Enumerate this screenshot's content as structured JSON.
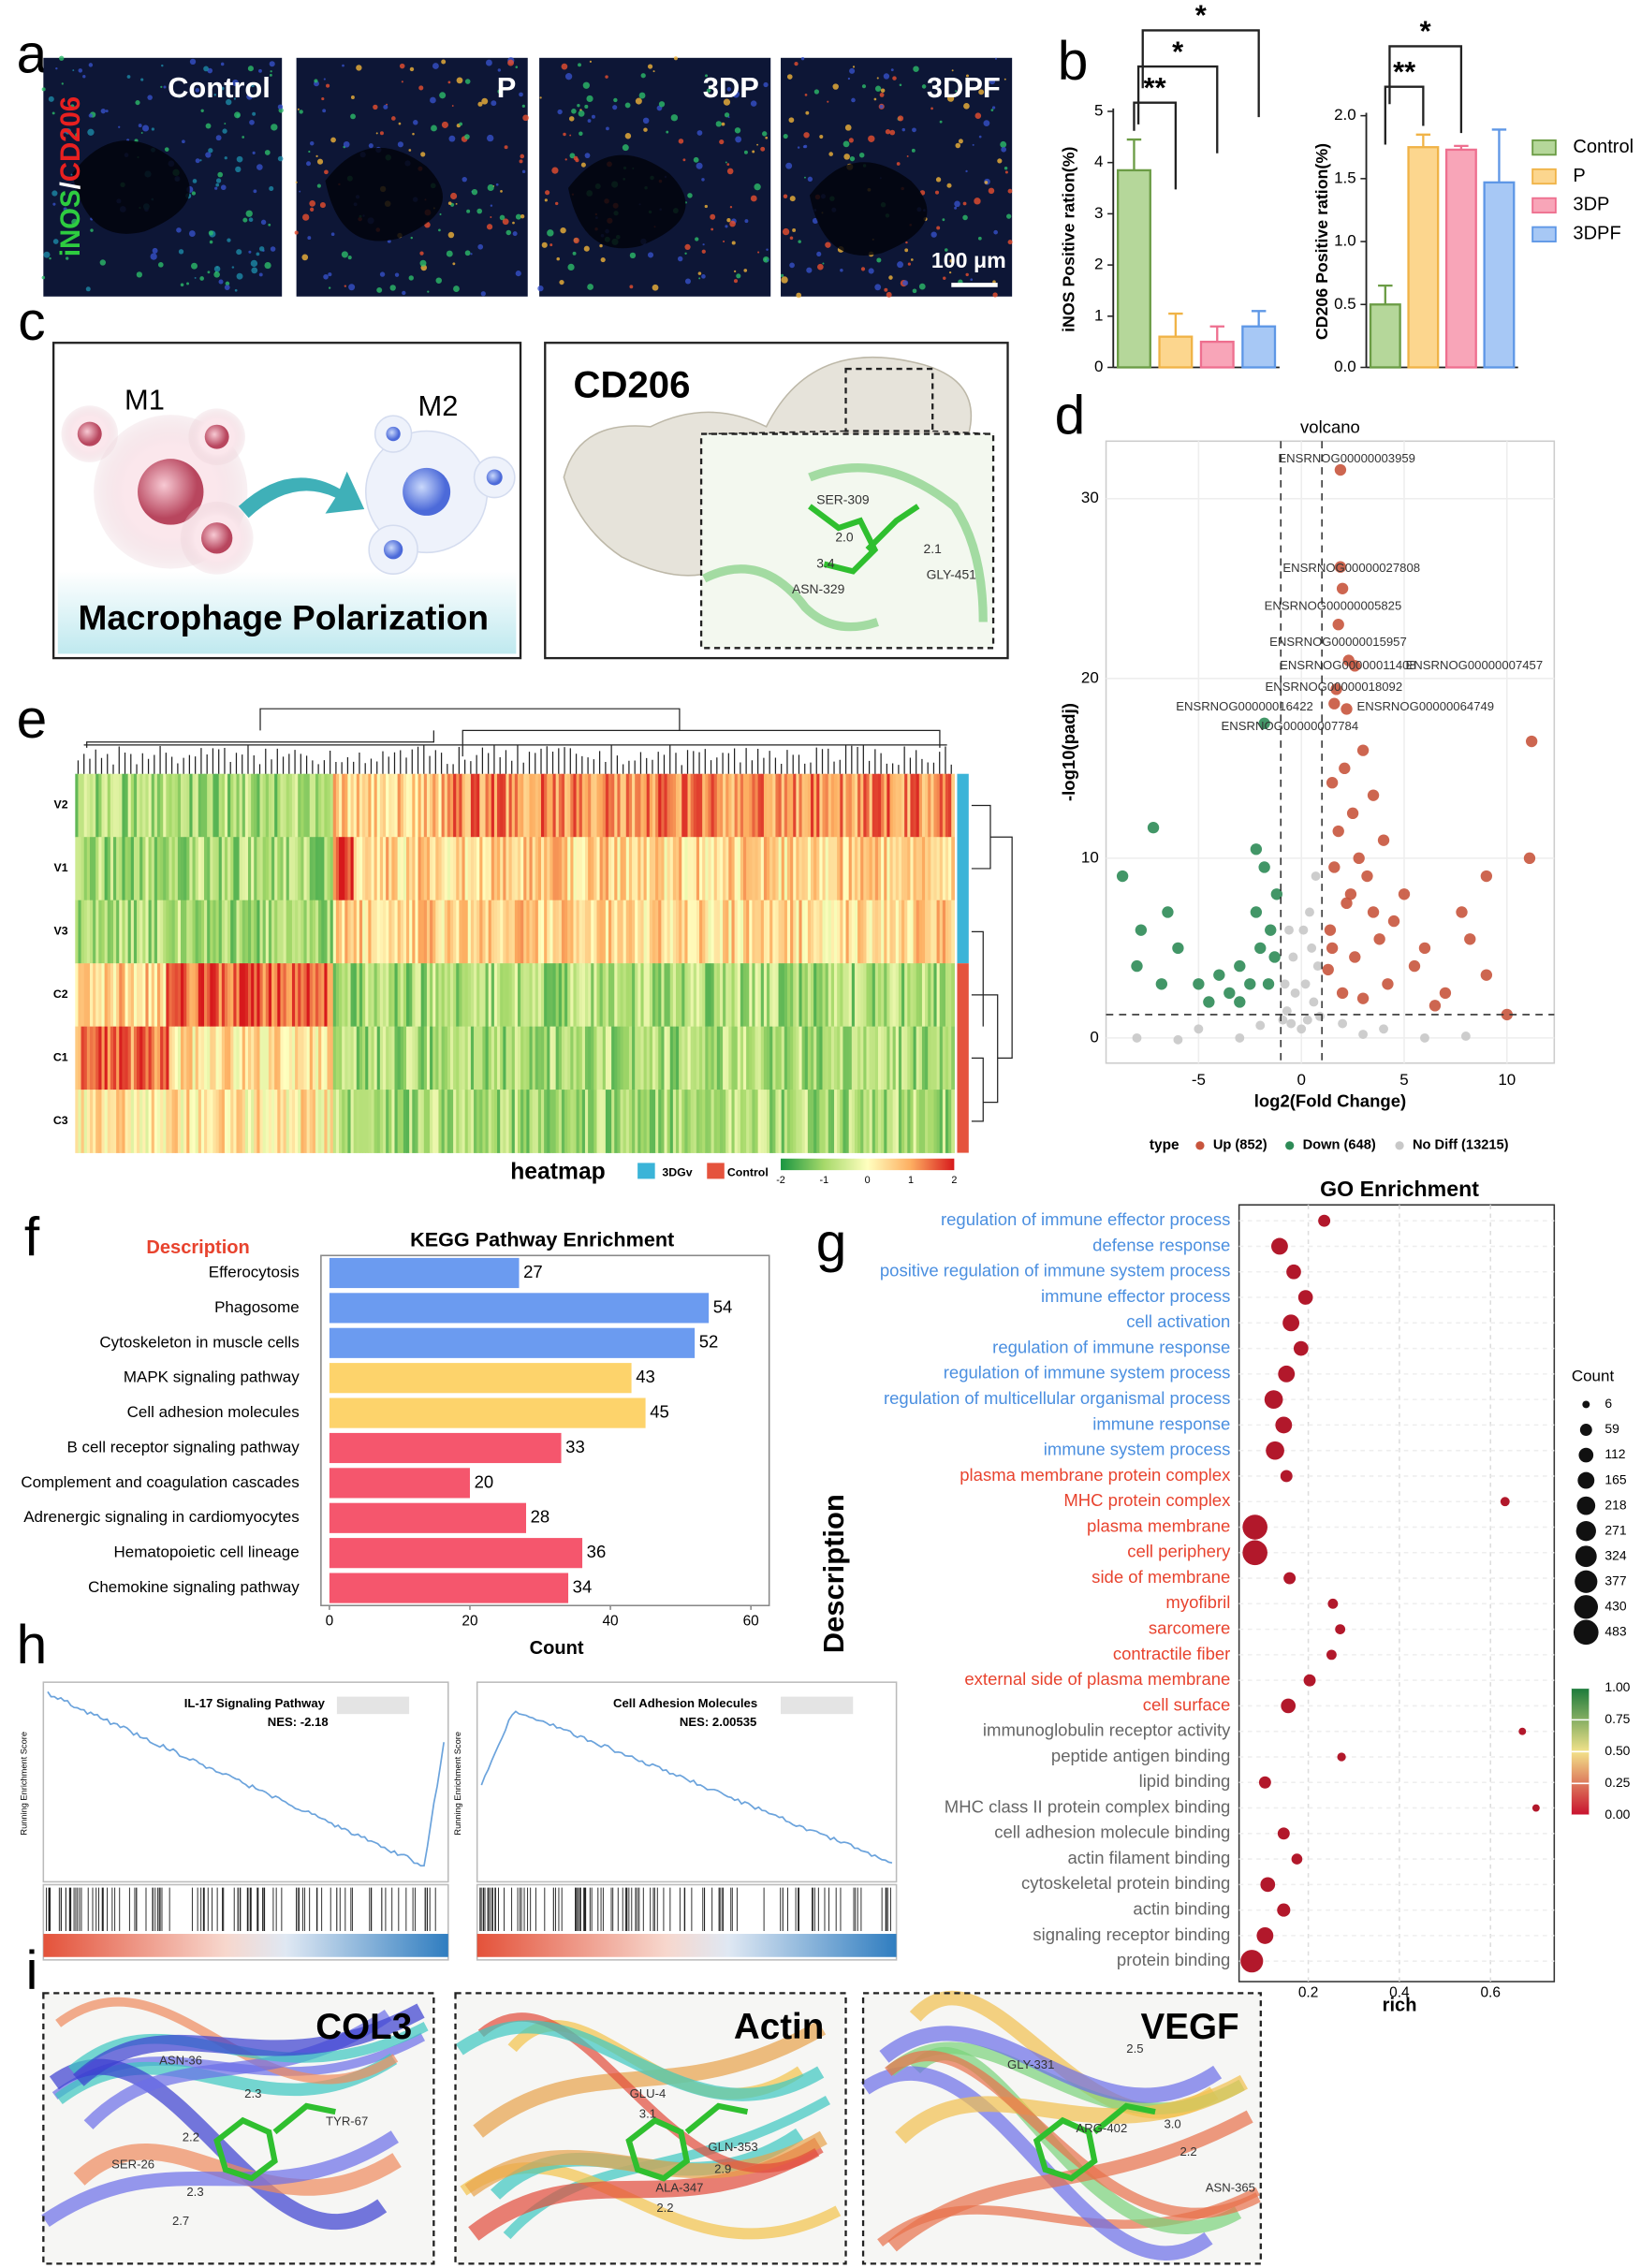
{
  "panel_labels": [
    "a",
    "b",
    "c",
    "d",
    "e",
    "f",
    "g",
    "h",
    "i"
  ],
  "a": {
    "stain_1": "iNOS",
    "stain_sep": "/",
    "stain_2": "CD206",
    "images": [
      "Control",
      "P",
      "3DP",
      "3DPF"
    ],
    "scale_bar": "100 μm"
  },
  "c": {
    "m1": "M1",
    "m2": "M2",
    "caption": "Macrophage Polarization",
    "protein": "CD206",
    "residues": [
      "SER-309",
      "2.0",
      "3.4",
      "ASN-329",
      "2.1",
      "GLY-451"
    ]
  },
  "e": {
    "legend_title": "heatmap",
    "groups": [
      {
        "name": "3DGv",
        "color": "#3bb4d8"
      },
      {
        "name": "Control",
        "color": "#e5533d"
      }
    ],
    "rows": [
      "V2",
      "V1",
      "V3",
      "C2",
      "C1",
      "C3"
    ],
    "colorbar_ticks": [
      -2,
      -1,
      0,
      1,
      2
    ]
  },
  "h": {
    "plots": [
      {
        "title": "IL-17 Signaling Pathway",
        "nes": "NES: -2.18",
        "y_label": "Running Enrichment Score"
      },
      {
        "title": "Cell Adhesion Molecules",
        "nes": "NES: 2.00535",
        "y_label": "Running Enrichment Score"
      }
    ]
  },
  "i": {
    "panels": [
      {
        "name": "COL3",
        "labels": [
          "ASN-36",
          "2.3",
          "TYR-67",
          "2.2",
          "SER-26",
          "2.3",
          "2.7"
        ]
      },
      {
        "name": "Actin",
        "labels": [
          "GLU-4",
          "3.1",
          "GLN-353",
          "2.9",
          "ALA-347",
          "2.2"
        ]
      },
      {
        "name": "VEGF",
        "labels": [
          "GLY-331",
          "2.5",
          "ARG-402",
          "3.0",
          "2.2",
          "ASN-365"
        ]
      }
    ]
  },
  "chart_data": [
    {
      "type": "bar",
      "y_label": "iNOS Positive ration(%)",
      "values": [
        3.85,
        0.6,
        0.5,
        0.8
      ],
      "errors": [
        0.6,
        0.45,
        0.3,
        0.3
      ],
      "colors": [
        "#b5d79a",
        "#fcd68e",
        "#f8a5b8",
        "#a7c8f5"
      ],
      "edge_colors": [
        "#6b9c45",
        "#f0b347",
        "#ee6f8f",
        "#5e97e6"
      ],
      "ylim": [
        0,
        5
      ],
      "yticks": [
        0,
        1,
        2,
        3,
        4,
        5
      ],
      "significance": [
        {
          "from": 0,
          "to": 1,
          "label": "**"
        },
        {
          "from": 0,
          "to": 2,
          "label": "*"
        },
        {
          "from": 0,
          "to": 3,
          "label": "*"
        }
      ]
    },
    {
      "type": "bar",
      "y_label": "CD206 Positive ration(%)",
      "categories": [
        "Control",
        "P",
        "3DP",
        "3DPF"
      ],
      "values": [
        0.5,
        1.75,
        1.73,
        1.47
      ],
      "errors": [
        0.15,
        0.1,
        0.03,
        0.42
      ],
      "colors": [
        "#b5d79a",
        "#fcd68e",
        "#f8a5b8",
        "#a7c8f5"
      ],
      "edge_colors": [
        "#6b9c45",
        "#f0b347",
        "#ee6f8f",
        "#5e97e6"
      ],
      "ylim": [
        0,
        2
      ],
      "yticks": [
        {
          "value": 0,
          "label": "0.0"
        },
        {
          "value": 0.5,
          "label": "0.5"
        },
        {
          "value": 1,
          "label": "1.0"
        },
        {
          "value": 1.5,
          "label": "1.5"
        },
        {
          "value": 2,
          "label": "2.0"
        }
      ],
      "significance": [
        {
          "from": 0,
          "to": 1,
          "label": "**"
        },
        {
          "from": 0,
          "to": 2,
          "label": "*"
        }
      ],
      "legend": "right"
    },
    {
      "type": "scatter",
      "title": "volcano",
      "x_label": "log2(Fold Change)",
      "y_label": "-log10(padj)",
      "xlim": [
        -9.5,
        12.3
      ],
      "xticks": [
        -5,
        0,
        5,
        10
      ],
      "ylim": [
        -1.4,
        33.2
      ],
      "yticks": [
        0,
        10,
        20,
        30
      ],
      "thresholds": {
        "x": [
          -1,
          1
        ],
        "y": 1.3
      },
      "legend_title": "type",
      "series": [
        {
          "name": "Up (852)",
          "color": "#c8553d",
          "x": [
            1.9,
            1.9,
            2.0,
            1.8,
            2.3,
            2.6,
            1.7,
            1.6,
            2.2,
            11.2,
            3.0,
            2.1,
            1.5,
            3.5,
            2.5,
            1.8,
            4.0,
            2.8,
            11.1,
            1.6,
            3.2,
            9.0,
            5.0,
            2.2,
            7.8,
            4.5,
            1.4,
            3.8,
            8.2,
            6.0,
            2.6,
            5.5,
            9.0,
            4.2,
            1.3,
            7.0,
            3.0,
            10.0,
            6.5,
            2.0,
            1.5,
            2.4,
            3.5
          ],
          "y": [
            31.6,
            26.2,
            25.0,
            23.0,
            21.0,
            20.7,
            19.4,
            18.6,
            18.3,
            16.5,
            16.0,
            15.0,
            14.2,
            13.5,
            12.5,
            11.5,
            11.0,
            10.0,
            10.0,
            9.5,
            9.0,
            9.0,
            8.0,
            7.5,
            7.0,
            6.5,
            6.0,
            5.5,
            5.5,
            5.0,
            4.5,
            4.0,
            3.5,
            3.0,
            3.8,
            2.5,
            2.2,
            1.3,
            1.8,
            2.5,
            5.0,
            8.0,
            7.0
          ]
        },
        {
          "name": "Down (648)",
          "color": "#2e8b57",
          "x": [
            -7.2,
            -8.7,
            -6.5,
            -7.8,
            -6.0,
            -8.0,
            -5.0,
            -4.0,
            -3.0,
            -2.0,
            -1.5,
            -2.5,
            -1.2,
            -3.5,
            -4.5,
            -6.8,
            -1.8,
            -2.2,
            -3.0,
            -1.3,
            -1.6,
            -1.8,
            -2.2
          ],
          "y": [
            11.7,
            9.0,
            7.0,
            6.0,
            5.0,
            4.0,
            3.0,
            3.5,
            4.0,
            5.0,
            6.0,
            3.0,
            8.0,
            2.5,
            2.0,
            3.0,
            9.5,
            7.0,
            2.0,
            4.5,
            3.0,
            17.5,
            10.5
          ]
        },
        {
          "name": "No Diff (13215)",
          "color": "#c8c8c8",
          "x": [
            0,
            0.3,
            -0.5,
            0.6,
            -0.7,
            0.2,
            -0.3,
            0.8,
            -0.8,
            0.5,
            0.1,
            -0.4,
            0.4,
            -3,
            3,
            -6,
            6,
            8,
            -8,
            0.7,
            -0.6,
            0.9,
            -5,
            4,
            -2,
            2,
            -0.9
          ],
          "y": [
            0.5,
            1,
            0.8,
            2,
            1.5,
            3,
            2.5,
            4,
            3,
            5,
            6,
            4.5,
            7,
            0,
            0.2,
            -0.1,
            0,
            0.1,
            0,
            9,
            6,
            1.2,
            0.5,
            0.5,
            0.7,
            0.8,
            1
          ]
        }
      ],
      "annotations": [
        {
          "text": "ENSRNOG00000003959",
          "x": -1.13,
          "y": 32.2
        },
        {
          "text": "ENSRNOG00000027808",
          "x": -0.9,
          "y": 26.1
        },
        {
          "text": "ENSRNOG00000005825",
          "x": -1.8,
          "y": 24.0
        },
        {
          "text": "ENSRNOG00000015957",
          "x": -1.55,
          "y": 22.0
        },
        {
          "text": "ENSRNOG00000011408",
          "x": -1.05,
          "y": 20.7
        },
        {
          "text": "ENSRNOG00000007457",
          "x": 5.07,
          "y": 20.7
        },
        {
          "text": "ENSRNOG00000018092",
          "x": -1.76,
          "y": 19.5
        },
        {
          "text": "ENSRNOG00000016422",
          "x": -6.1,
          "y": 18.4
        },
        {
          "text": "ENSRNOG00000064749",
          "x": 2.7,
          "y": 18.4
        },
        {
          "text": "ENSRNOG00000007784",
          "x": -3.9,
          "y": 17.3
        }
      ]
    },
    {
      "type": "barh",
      "title": "KEGG Pathway Enrichment",
      "y_label": "Description",
      "x_label": "Count",
      "categories": [
        "Efferocytosis",
        "Phagosome",
        "Cytoskeleton in muscle cells",
        "MAPK signaling pathway",
        "Cell adhesion molecules",
        "B cell receptor signaling pathway",
        "Complement and coagulation cascades",
        "Adrenergic signaling in cardiomyocytes",
        "Hematopoietic cell lineage",
        "Chemokine signaling pathway"
      ],
      "values": [
        27,
        54,
        52,
        43,
        45,
        33,
        20,
        28,
        36,
        34
      ],
      "colors": [
        "#6b9bf0",
        "#6b9bf0",
        "#6b9bf0",
        "#fdd36b",
        "#fdd36b",
        "#f5566d",
        "#f5566d",
        "#f5566d",
        "#f5566d",
        "#f5566d"
      ],
      "xlim": [
        -1.2,
        62.6
      ],
      "xticks": [
        0,
        20,
        40,
        60
      ]
    },
    {
      "type": "dot",
      "title": "GO Enrichment",
      "x_label": "rich",
      "y_label": "Description",
      "categories": [
        "regulation of immune effector process",
        "defense response",
        "positive regulation of immune system process",
        "immune effector process",
        "cell activation",
        "regulation of immune response",
        "regulation of immune system process",
        "regulation of multicellular organismal process",
        "immune response",
        "immune system process",
        "plasma membrane protein complex",
        "MHC protein complex",
        "plasma membrane",
        "cell periphery",
        "side of membrane",
        "myofibril",
        "sarcomere",
        "contractile fiber",
        "external side of plasma membrane",
        "cell surface",
        "immunoglobulin receptor activity",
        "peptide antigen binding",
        "lipid binding",
        "MHC class II protein complex binding",
        "cell adhesion molecule binding",
        "actin filament binding",
        "cytoskeletal protein binding",
        "actin binding",
        "signaling receptor binding",
        "protein binding"
      ],
      "label_colors": [
        "#4b8fe0",
        "#4b8fe0",
        "#4b8fe0",
        "#4b8fe0",
        "#4b8fe0",
        "#4b8fe0",
        "#4b8fe0",
        "#4b8fe0",
        "#4b8fe0",
        "#4b8fe0",
        "#e8432e",
        "#e8432e",
        "#e8432e",
        "#e8432e",
        "#e8432e",
        "#e8432e",
        "#e8432e",
        "#e8432e",
        "#e8432e",
        "#e8432e",
        "#666666",
        "#666666",
        "#666666",
        "#666666",
        "#666666",
        "#666666",
        "#666666",
        "#666666",
        "#666666",
        "#666666"
      ],
      "values": [
        0.235,
        0.137,
        0.168,
        0.194,
        0.162,
        0.184,
        0.152,
        0.124,
        0.146,
        0.127,
        0.152,
        0.632,
        0.083,
        0.083,
        0.159,
        0.254,
        0.27,
        0.251,
        0.203,
        0.156,
        0.67,
        0.273,
        0.105,
        0.7,
        0.146,
        0.175,
        0.111,
        0.146,
        0.105,
        0.076
      ],
      "sizes": [
        59,
        165,
        112,
        112,
        165,
        112,
        165,
        218,
        165,
        218,
        59,
        20,
        483,
        483,
        59,
        30,
        30,
        30,
        59,
        112,
        6,
        15,
        59,
        6,
        59,
        40,
        112,
        80,
        165,
        377
      ],
      "color": "#b2182b",
      "xlim": [
        0.048,
        0.74
      ],
      "xticks": [
        0.2,
        0.4,
        0.6
      ],
      "size_legend": {
        "title": "Count",
        "values": [
          6,
          59,
          112,
          165,
          218,
          271,
          324,
          377,
          430,
          483
        ]
      },
      "color_legend": {
        "lim": [
          0,
          1
        ],
        "ticks": [
          {
            "value": 1,
            "label": "1.00"
          },
          {
            "value": 0.75,
            "label": "0.75"
          },
          {
            "value": 0.5,
            "label": "0.50"
          },
          {
            "value": 0.25,
            "label": "0.25"
          },
          {
            "value": 0,
            "label": "0.00"
          }
        ]
      }
    }
  ]
}
